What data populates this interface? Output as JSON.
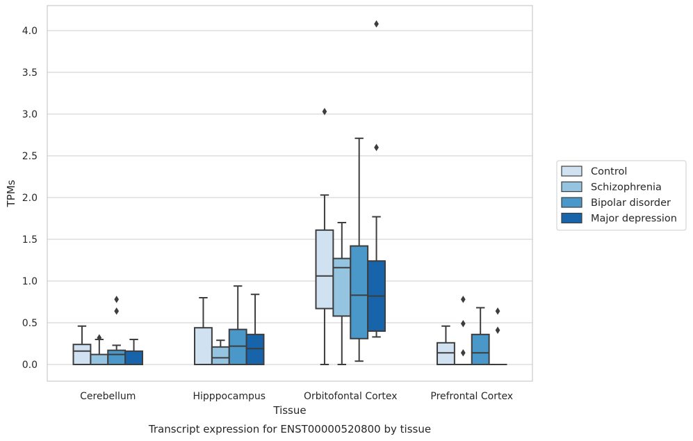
{
  "chart_data": {
    "type": "boxplot",
    "title": "Transcript expression for ENST00000520800 by tissue",
    "xlabel": "Tissue",
    "ylabel": "TPMs",
    "ylim": [
      -0.2,
      4.3
    ],
    "yticks": [
      0.0,
      0.5,
      1.0,
      1.5,
      2.0,
      2.5,
      3.0,
      3.5,
      4.0
    ],
    "ytick_labels": [
      "0.0",
      "0.5",
      "1.0",
      "1.5",
      "2.0",
      "2.5",
      "3.0",
      "3.5",
      "4.0"
    ],
    "grid": "horizontal",
    "legend_position": "right",
    "categories": [
      "Cerebellum",
      "Hipppocampus",
      "Orbitofontal Cortex",
      "Prefrontal Cortex"
    ],
    "series": [
      {
        "name": "Control",
        "color": "#d0e1f2",
        "boxes": [
          {
            "low": 0.0,
            "q1": 0.0,
            "median": 0.16,
            "q3": 0.24,
            "high": 0.46,
            "outliers": []
          },
          {
            "low": 0.0,
            "q1": 0.0,
            "median": 0.0,
            "q3": 0.44,
            "high": 0.8,
            "outliers": []
          },
          {
            "low": 0.0,
            "q1": 0.67,
            "median": 1.06,
            "q3": 1.61,
            "high": 2.03,
            "outliers": [
              3.03
            ]
          },
          {
            "low": 0.0,
            "q1": 0.0,
            "median": 0.14,
            "q3": 0.26,
            "high": 0.46,
            "outliers": []
          }
        ]
      },
      {
        "name": "Schizophrenia",
        "color": "#94c4df",
        "boxes": [
          {
            "low": 0.0,
            "q1": 0.0,
            "median": 0.0,
            "q3": 0.12,
            "high": 0.3,
            "outliers": [
              0.32
            ]
          },
          {
            "low": 0.0,
            "q1": 0.0,
            "median": 0.08,
            "q3": 0.21,
            "high": 0.29,
            "outliers": []
          },
          {
            "low": 0.0,
            "q1": 0.58,
            "median": 1.16,
            "q3": 1.27,
            "high": 1.7,
            "outliers": []
          },
          {
            "low": 0.0,
            "q1": 0.0,
            "median": 0.0,
            "q3": 0.0,
            "high": 0.0,
            "outliers": [
              0.14,
              0.49,
              0.78
            ]
          }
        ]
      },
      {
        "name": "Bipolar disorder",
        "color": "#4a98c9",
        "boxes": [
          {
            "low": 0.0,
            "q1": 0.0,
            "median": 0.12,
            "q3": 0.17,
            "high": 0.23,
            "outliers": [
              0.64,
              0.78
            ]
          },
          {
            "low": 0.0,
            "q1": 0.0,
            "median": 0.22,
            "q3": 0.42,
            "high": 0.94,
            "outliers": []
          },
          {
            "low": 0.04,
            "q1": 0.31,
            "median": 0.83,
            "q3": 1.42,
            "high": 2.71,
            "outliers": []
          },
          {
            "low": 0.0,
            "q1": 0.0,
            "median": 0.14,
            "q3": 0.36,
            "high": 0.68,
            "outliers": []
          }
        ]
      },
      {
        "name": "Major depression",
        "color": "#1764ab",
        "boxes": [
          {
            "low": 0.0,
            "q1": 0.0,
            "median": 0.0,
            "q3": 0.16,
            "high": 0.3,
            "outliers": []
          },
          {
            "low": 0.0,
            "q1": 0.0,
            "median": 0.19,
            "q3": 0.36,
            "high": 0.84,
            "outliers": []
          },
          {
            "low": 0.33,
            "q1": 0.4,
            "median": 0.82,
            "q3": 1.24,
            "high": 1.77,
            "outliers": [
              2.6,
              4.08
            ]
          },
          {
            "low": 0.0,
            "q1": 0.0,
            "median": 0.0,
            "q3": 0.0,
            "high": 0.0,
            "outliers": [
              0.41,
              0.64
            ]
          }
        ]
      }
    ]
  }
}
